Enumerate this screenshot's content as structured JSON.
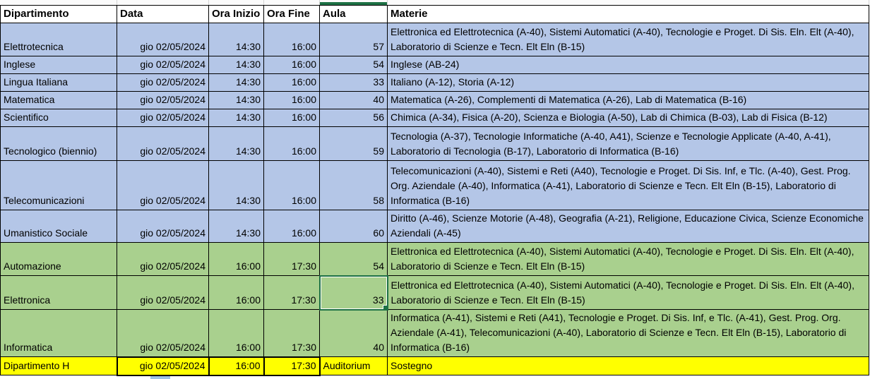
{
  "sheet": {
    "colors": {
      "blue": "#B4C6E7",
      "green": "#A9D08E",
      "yellow": "#FFFF00",
      "selection_green": "#1E7145",
      "grid_border": "#000000"
    },
    "columns": [
      {
        "key": "dipartimento",
        "label": "Dipartimento",
        "align": "left"
      },
      {
        "key": "data",
        "label": "Data",
        "align": "right"
      },
      {
        "key": "ora_inizio",
        "label": "Ora Inizio",
        "align": "right"
      },
      {
        "key": "ora_fine",
        "label": "Ora Fine",
        "align": "right"
      },
      {
        "key": "aula",
        "label": "Aula",
        "align": "right"
      },
      {
        "key": "materie",
        "label": "Materie",
        "align": "left"
      }
    ],
    "selection": {
      "row": "Elettronica",
      "column": "Aula",
      "value": "33"
    },
    "rows": [
      {
        "dipartimento": "Elettrotecnica",
        "data": "gio 02/05/2024",
        "ora_inizio": "14:30",
        "ora_fine": "16:00",
        "aula": "57",
        "materie": "Elettronica ed Elettrotecnica (A-40), Sistemi Automatici (A-40), Tecnologie e Proget. Di Sis. Eln. Elt (A-40), Laboratorio di Scienze e Tecn. Elt Eln (B-15)",
        "fill": "blue"
      },
      {
        "dipartimento": "Inglese",
        "data": "gio 02/05/2024",
        "ora_inizio": "14:30",
        "ora_fine": "16:00",
        "aula": "54",
        "materie": "Inglese (AB-24)",
        "fill": "blue"
      },
      {
        "dipartimento": "Lingua Italiana",
        "data": "gio 02/05/2024",
        "ora_inizio": "14:30",
        "ora_fine": "16:00",
        "aula": "33",
        "materie": "Italiano (A-12), Storia (A-12)",
        "fill": "blue"
      },
      {
        "dipartimento": "Matematica",
        "data": "gio 02/05/2024",
        "ora_inizio": "14:30",
        "ora_fine": "16:00",
        "aula": "40",
        "materie": "Matematica (A-26), Complementi di Matematica (A-26), Lab di Matematica (B-16)",
        "fill": "blue"
      },
      {
        "dipartimento": "Scientifico",
        "data": "gio 02/05/2024",
        "ora_inizio": "14:30",
        "ora_fine": "16:00",
        "aula": "56",
        "materie": "Chimica (A-34), Fisica (A-20), Scienza e Biologia (A-50), Lab di Chimica (B-03), Lab di Fisica (B-12)",
        "fill": "blue"
      },
      {
        "dipartimento": "Tecnologico (biennio)",
        "data": "gio 02/05/2024",
        "ora_inizio": "14:30",
        "ora_fine": "16:00",
        "aula": "59",
        "materie": "Tecnologia (A-37), Tecnologie Informatiche (A-40, A41), Scienze e Tecnologie Applicate (A-40, A-41), Laboratorio di Tecnologia (B-17), Laboratorio di Informatica (B-16)",
        "fill": "blue"
      },
      {
        "dipartimento": "Telecomunicazioni",
        "data": "gio 02/05/2024",
        "ora_inizio": "14:30",
        "ora_fine": "16:00",
        "aula": "58",
        "materie": "Telecomunicazioni (A-40), Sistemi e Reti (A40), Tecnologie e Proget. Di Sis. Inf, e Tlc. (A-40), Gest. Prog. Org. Aziendale (A-40), Informatica (A-41), Laboratorio di Scienze e Tecn. Elt Eln (B-15), Laboratorio di Informatica (B-16)",
        "fill": "blue"
      },
      {
        "dipartimento": "Umanistico Sociale",
        "data": "gio 02/05/2024",
        "ora_inizio": "14:30",
        "ora_fine": "16:00",
        "aula": "60",
        "materie": "Diritto (A-46), Scienze Motorie (A-48), Geografia (A-21), Religione, Educazione Civica, Scienze Economiche Aziendali (A-45)",
        "fill": "blue"
      },
      {
        "dipartimento": "Automazione",
        "data": "gio 02/05/2024",
        "ora_inizio": "16:00",
        "ora_fine": "17:30",
        "aula": "54",
        "materie": "Elettronica ed Elettrotecnica (A-40), Sistemi Automatici (A-40), Tecnologie e Proget. Di Sis. Eln. Elt (A-40), Laboratorio di Scienze e Tecn. Elt Eln (B-15)",
        "fill": "green"
      },
      {
        "dipartimento": "Elettronica",
        "data": "gio 02/05/2024",
        "ora_inizio": "16:00",
        "ora_fine": "17:30",
        "aula": "33",
        "materie": "Elettronica ed Elettrotecnica (A-40), Sistemi Automatici (A-40), Tecnologie e Proget. Di Sis. Eln. Elt (A-40), Laboratorio di Scienze e Tecn. Elt Eln (B-15)",
        "fill": "green",
        "selected_cell": "aula"
      },
      {
        "dipartimento": "Informatica",
        "data": "gio 02/05/2024",
        "ora_inizio": "16:00",
        "ora_fine": "17:30",
        "aula": "40",
        "materie": "Informatica (A-41), Sistemi e Reti (A41), Tecnologie e Proget. Di Sis. Inf, e Tlc. (A-41), Gest. Prog. Org. Aziendale (A-41), Telecomunicazioni (A-40), Laboratorio di Scienze e Tecn. Elt Eln (B-15), Laboratorio di Informatica (B-16)",
        "fill": "green"
      },
      {
        "dipartimento": "Dipartimento H",
        "data": "gio 02/05/2024",
        "ora_inizio": "16:00",
        "ora_fine": "17:30",
        "aula": "Auditorium",
        "materie": "Sostegno",
        "fill": "yellow",
        "boxed_cells": [
          "data",
          "ora_inizio",
          "ora_fine"
        ]
      }
    ]
  }
}
